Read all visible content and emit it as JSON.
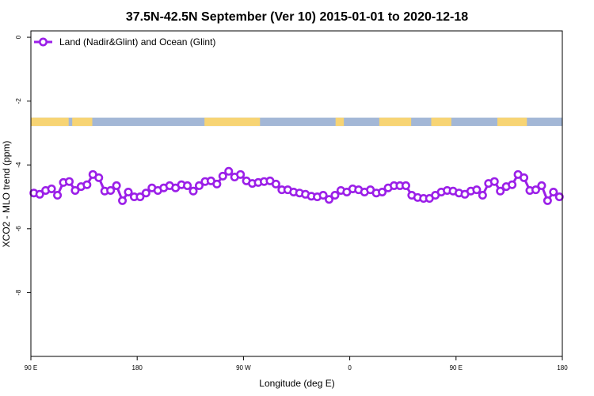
{
  "chart_data": {
    "type": "line",
    "title": "37.5N-42.5N September (Ver 10)   2015-01-01 to 2020-12-18",
    "xlabel": "Longitude (deg E)",
    "ylabel": "XCO2 - MLO trend (ppm)",
    "xlim": [
      90,
      540
    ],
    "ylim": [
      -10,
      0.2
    ],
    "x_ticks": [
      {
        "value": 90,
        "label": "90 E"
      },
      {
        "value": 180,
        "label": "180"
      },
      {
        "value": 270,
        "label": "90 W"
      },
      {
        "value": 360,
        "label": "0"
      },
      {
        "value": 450,
        "label": "90 E"
      },
      {
        "value": 540,
        "label": "180"
      }
    ],
    "y_ticks": [
      {
        "value": 0,
        "label": "0"
      },
      {
        "value": -2,
        "label": "-2"
      },
      {
        "value": -4,
        "label": "-4"
      },
      {
        "value": -6,
        "label": "-6"
      },
      {
        "value": -8,
        "label": "-8"
      }
    ],
    "legend": {
      "position": "top-left"
    },
    "land_strip": {
      "y_range": [
        -2.78,
        -2.52
      ],
      "ocean_color": "#a3b7d6",
      "land_color": "#f7d474",
      "land_segments": [
        [
          90,
          122
        ],
        [
          125,
          142
        ],
        [
          237,
          284
        ],
        [
          348,
          355
        ],
        [
          385,
          412
        ],
        [
          429,
          446
        ],
        [
          485,
          510
        ]
      ]
    },
    "series": [
      {
        "name": "Land (Nadir&Glint) and Ocean (Glint)",
        "color": "#9b1fe8",
        "x": [
          92.5,
          97.5,
          102.5,
          107.5,
          112.5,
          117.5,
          122.5,
          127.5,
          132.5,
          137.5,
          142.5,
          147.5,
          152.5,
          157.5,
          162.5,
          167.5,
          172.5,
          177.5,
          182.5,
          187.5,
          192.5,
          197.5,
          202.5,
          207.5,
          212.5,
          217.5,
          222.5,
          227.5,
          232.5,
          237.5,
          242.5,
          247.5,
          252.5,
          257.5,
          262.5,
          267.5,
          272.5,
          277.5,
          282.5,
          287.5,
          292.5,
          297.5,
          302.5,
          307.5,
          312.5,
          317.5,
          322.5,
          327.5,
          332.5,
          337.5,
          342.5,
          347.5,
          352.5,
          357.5,
          362.5,
          367.5,
          372.5,
          377.5,
          382.5,
          387.5,
          392.5,
          397.5,
          402.5,
          407.5,
          412.5,
          417.5,
          422.5,
          427.5,
          432.5,
          437.5,
          442.5,
          447.5,
          452.5,
          457.5,
          462.5,
          467.5,
          472.5,
          477.5,
          482.5,
          487.5,
          492.5,
          497.5,
          502.5,
          507.5,
          512.5,
          517.5,
          522.5,
          527.5,
          532.5,
          537.5
        ],
        "values": [
          -4.88,
          -4.92,
          -4.8,
          -4.75,
          -4.95,
          -4.55,
          -4.52,
          -4.8,
          -4.68,
          -4.62,
          -4.3,
          -4.4,
          -4.82,
          -4.8,
          -4.65,
          -5.12,
          -4.85,
          -5.0,
          -5.0,
          -4.88,
          -4.72,
          -4.8,
          -4.72,
          -4.65,
          -4.72,
          -4.62,
          -4.65,
          -4.82,
          -4.65,
          -4.52,
          -4.5,
          -4.6,
          -4.35,
          -4.2,
          -4.38,
          -4.3,
          -4.5,
          -4.58,
          -4.55,
          -4.52,
          -4.5,
          -4.6,
          -4.78,
          -4.78,
          -4.85,
          -4.88,
          -4.92,
          -4.98,
          -5.0,
          -4.95,
          -5.08,
          -4.95,
          -4.8,
          -4.85,
          -4.75,
          -4.78,
          -4.85,
          -4.78,
          -4.88,
          -4.85,
          -4.72,
          -4.65,
          -4.65,
          -4.65,
          -4.95,
          -5.02,
          -5.05,
          -5.05,
          -4.95,
          -4.85,
          -4.8,
          -4.82,
          -4.88,
          -4.92,
          -4.82,
          -4.78,
          -4.95,
          -4.58,
          -4.52,
          -4.82,
          -4.68,
          -4.62,
          -4.3,
          -4.4,
          -4.8,
          -4.78,
          -4.65,
          -5.12,
          -4.85,
          -5.0
        ]
      }
    ]
  }
}
